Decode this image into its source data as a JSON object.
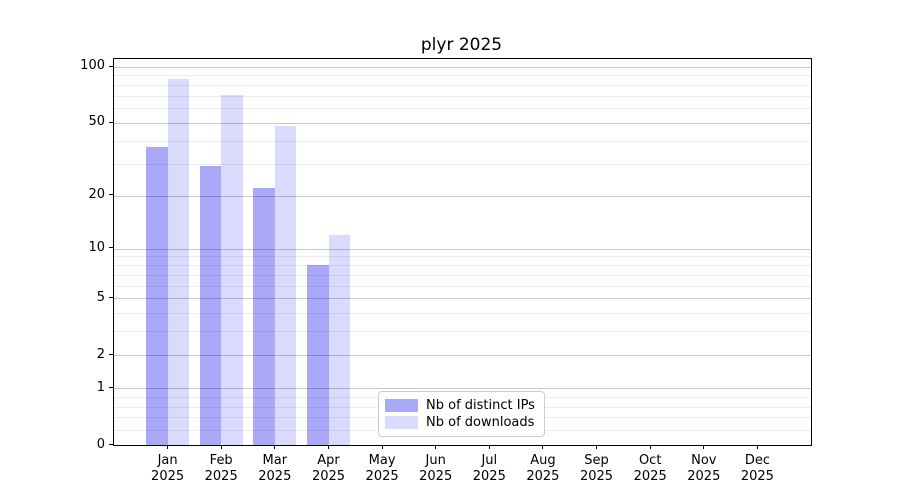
{
  "chart_data": {
    "type": "bar",
    "title": "plyr 2025",
    "y_scale": "log1p",
    "grid": true,
    "x_months": [
      "Jan",
      "Feb",
      "Mar",
      "Apr",
      "May",
      "Jun",
      "Jul",
      "Aug",
      "Sep",
      "Oct",
      "Nov",
      "Dec"
    ],
    "x_year": "2025",
    "y_ticks": [
      0,
      1,
      2,
      5,
      10,
      20,
      50,
      100
    ],
    "y_minor_gridlines": [
      0.2,
      0.4,
      0.6,
      0.8,
      3,
      4,
      6,
      7,
      8,
      9,
      30,
      40,
      60,
      70,
      80,
      90
    ],
    "ylim_top": 110,
    "legend_position": "lower center",
    "series": [
      {
        "name": "Nb of distinct IPs",
        "color": "rgba(10,10,235,0.35)",
        "values": [
          37,
          29,
          22,
          8,
          null,
          null,
          null,
          null,
          null,
          null,
          null,
          null
        ]
      },
      {
        "name": "Nb of downloads",
        "color": "rgba(10,10,235,0.15)",
        "values": [
          86,
          71,
          48,
          12,
          null,
          null,
          null,
          null,
          null,
          null,
          null,
          null
        ]
      }
    ]
  }
}
